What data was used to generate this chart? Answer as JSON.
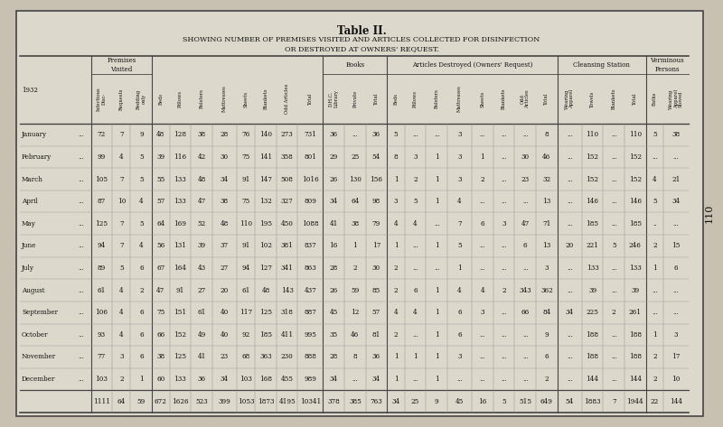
{
  "title": "Table II.",
  "subtitle1": "SHOWING NUMBER OF PREMISES VISITED AND ARTICLES COLLECTED FOR DISINFECTION",
  "subtitle2": "OR DESTROYED AT OWNERS' REQUEST.",
  "bg_color": "#c8c0b0",
  "table_bg": "#ddd8cc",
  "border_color": "#444444",
  "text_color": "#111111",
  "side_label": "110",
  "data": [
    [
      "January",
      "...",
      "72",
      "7",
      "9",
      "48",
      "128",
      "38",
      "28",
      "76",
      "140",
      "273",
      "731",
      "36",
      "...",
      "36",
      "5",
      "...",
      "...",
      "3",
      "...",
      "...",
      "...",
      "8",
      "...",
      "110",
      "...",
      "110",
      "5",
      "38"
    ],
    [
      "February",
      "...",
      "99",
      "4",
      "5",
      "39",
      "116",
      "42",
      "30",
      "75",
      "141",
      "358",
      "801",
      "29",
      "25",
      "54",
      "8",
      "3",
      "1",
      "3",
      "1",
      "...",
      "30",
      "46",
      "...",
      "152",
      "...",
      "152",
      "...",
      "..."
    ],
    [
      "March",
      "...",
      "105",
      "7",
      "5",
      "55",
      "133",
      "48",
      "34",
      "91",
      "147",
      "508",
      "1016",
      "26",
      "130",
      "156",
      "1",
      "2",
      "1",
      "3",
      "2",
      "...",
      "23",
      "32",
      "...",
      "152",
      "...",
      "152",
      "4",
      "21"
    ],
    [
      "April",
      "...",
      "87",
      "10",
      "4",
      "57",
      "133",
      "47",
      "38",
      "75",
      "132",
      "327",
      "809",
      "34",
      "64",
      "98",
      "3",
      "5",
      "1",
      "4",
      "...",
      "...",
      "...",
      "13",
      "...",
      "146",
      "...",
      "146",
      "5",
      "34"
    ],
    [
      "May",
      "...",
      "125",
      "7",
      "5",
      "64",
      "169",
      "52",
      "48",
      "110",
      "195",
      "450",
      "1088",
      "41",
      "38",
      "79",
      "4",
      "4",
      "...",
      "7",
      "6",
      "3",
      "47",
      "71",
      "...",
      "185",
      "...",
      "185",
      "..",
      "..."
    ],
    [
      "June",
      "...",
      "94",
      "7",
      "4",
      "56",
      "131",
      "39",
      "37",
      "91",
      "102",
      "381",
      "837",
      "16",
      "1",
      "17",
      "1",
      "...",
      "1",
      "5",
      "...",
      "...",
      "6",
      "13",
      "20",
      "221",
      "5",
      "246",
      "2",
      "15"
    ],
    [
      "July",
      "...",
      "89",
      "5",
      "6",
      "67",
      "164",
      "43",
      "27",
      "94",
      "127",
      "341",
      "863",
      "28",
      "2",
      "30",
      "2",
      "...",
      "...",
      "1",
      "...",
      "...",
      "...",
      "3",
      "...",
      "133",
      "...",
      "133",
      "1",
      "6"
    ],
    [
      "August",
      "...",
      "61",
      "4",
      "2",
      "47",
      "91",
      "27",
      "20",
      "61",
      "48",
      "143",
      "437",
      "26",
      "59",
      "85",
      "2",
      "6",
      "1",
      "4",
      "4",
      "2",
      "343",
      "362",
      "...",
      "39",
      "...",
      "39",
      "...",
      "..."
    ],
    [
      "September",
      "...",
      "106",
      "4",
      "6",
      "75",
      "151",
      "61",
      "40",
      "117",
      "125",
      "318",
      "887",
      "45",
      "12",
      "57",
      "4",
      "4",
      "1",
      "6",
      "3",
      "...",
      "66",
      "84",
      "34",
      "225",
      "2",
      "261",
      "...",
      "..."
    ],
    [
      "October",
      "...",
      "93",
      "4",
      "6",
      "66",
      "152",
      "49",
      "40",
      "92",
      "185",
      "411",
      "995",
      "35",
      "46",
      "81",
      "2",
      "...",
      "1",
      "6",
      "...",
      "...",
      "...",
      "9",
      "...",
      "188",
      "...",
      "188",
      "1",
      "3"
    ],
    [
      "November",
      "...",
      "77",
      "3",
      "6",
      "38",
      "125",
      "41",
      "23",
      "68",
      "363",
      "230",
      "888",
      "28",
      "8",
      "36",
      "1",
      "1",
      "1",
      "3",
      "...",
      "...",
      "...",
      "6",
      "...",
      "188",
      "...",
      "188",
      "2",
      "17"
    ],
    [
      "December",
      "...",
      "103",
      "2",
      "1",
      "60",
      "133",
      "36",
      "34",
      "103",
      "168",
      "455",
      "989",
      "34",
      "...",
      "34",
      "1",
      "...",
      "1",
      "...",
      "...",
      "...",
      "...",
      "2",
      "...",
      "144",
      "...",
      "144",
      "2",
      "10"
    ],
    [
      "",
      "",
      "1111",
      "64",
      "59",
      "672",
      "1626",
      "523",
      "399",
      "1053",
      "1873",
      "4195",
      "10341",
      "378",
      "385",
      "763",
      "34",
      "25",
      "9",
      "45",
      "16",
      "5",
      "515",
      "649",
      "54",
      "1883",
      "7",
      "1944",
      "22",
      "144"
    ]
  ]
}
